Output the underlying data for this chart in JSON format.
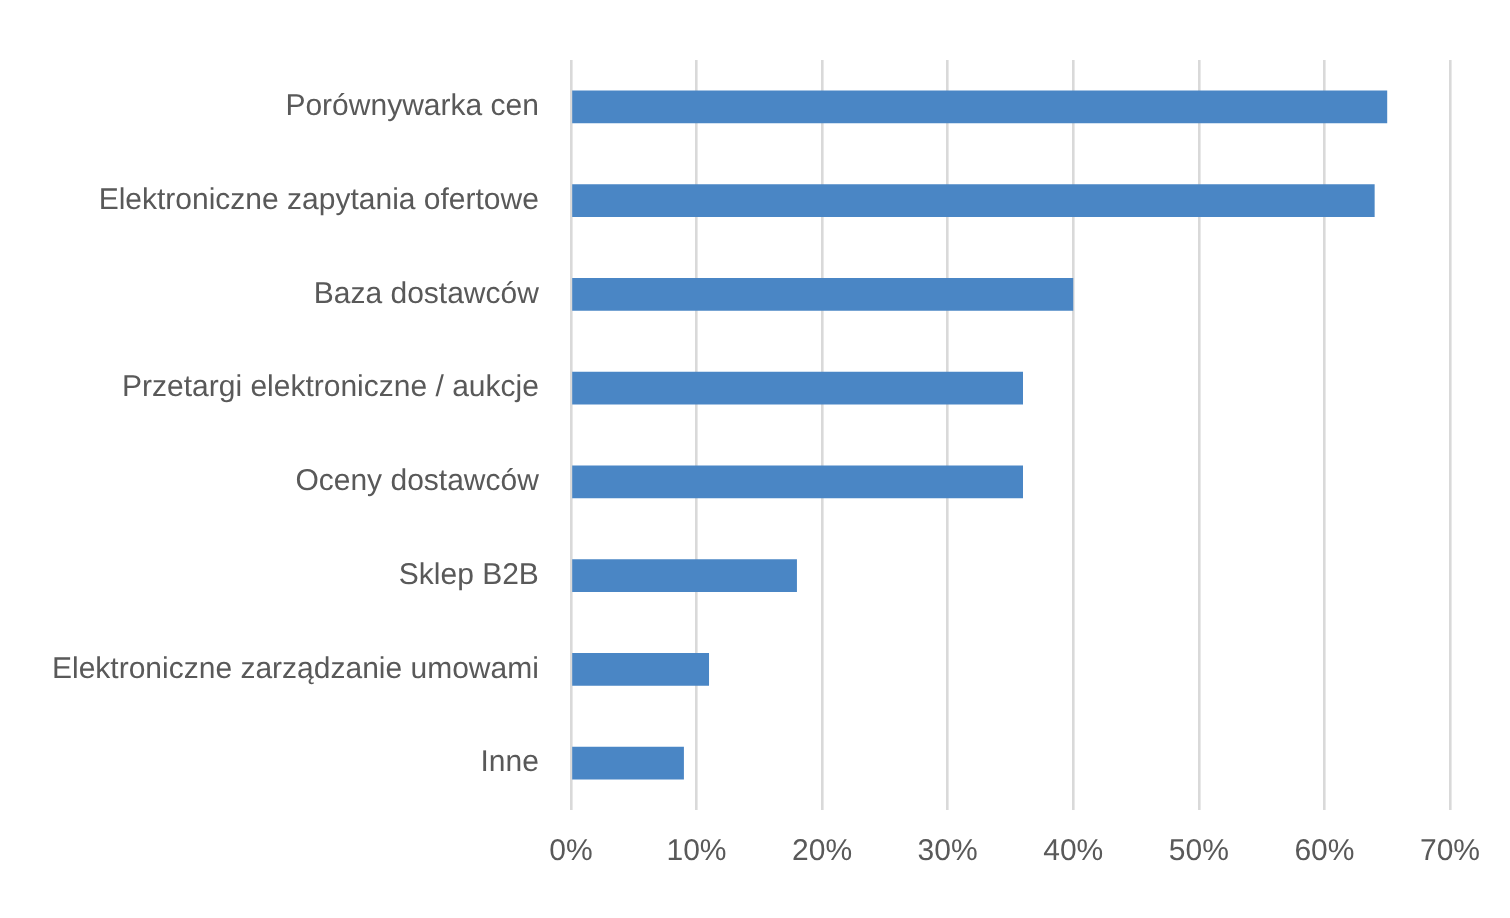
{
  "chart_data": {
    "type": "bar",
    "orientation": "horizontal",
    "categories": [
      "Porównywarka cen",
      "Elektroniczne zapytania ofertowe",
      "Baza dostawców",
      "Przetargi elektroniczne / aukcje",
      "Oceny dostawców",
      "Sklep B2B",
      "Elektroniczne zarządzanie umowami",
      "Inne"
    ],
    "values": [
      65,
      64,
      40,
      36,
      36,
      18,
      11,
      9
    ],
    "color": "#4a86c5",
    "xlim": [
      0,
      70
    ],
    "xticks": [
      {
        "value": 0,
        "label": "0%"
      },
      {
        "value": 10,
        "label": "10%"
      },
      {
        "value": 20,
        "label": "20%"
      },
      {
        "value": 30,
        "label": "30%"
      },
      {
        "value": 40,
        "label": "40%"
      },
      {
        "value": 50,
        "label": "50%"
      },
      {
        "value": 60,
        "label": "60%"
      },
      {
        "value": 70,
        "label": "70%"
      }
    ],
    "grid": "x",
    "legend": false
  }
}
